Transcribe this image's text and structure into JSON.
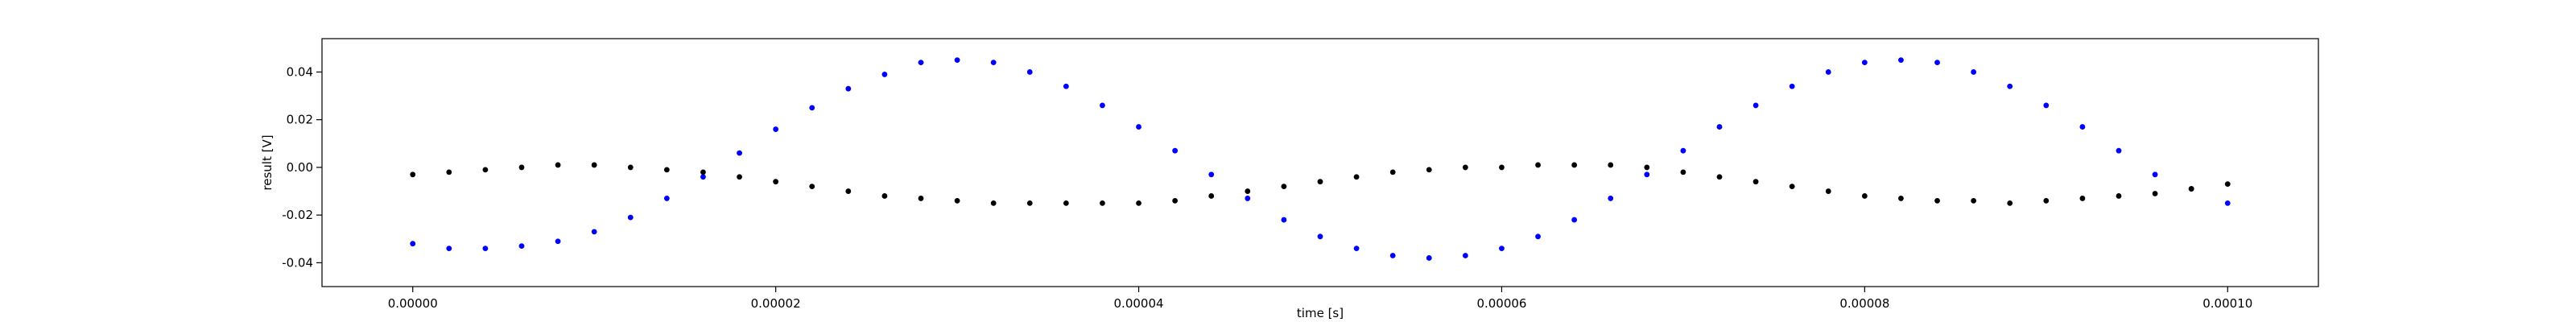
{
  "chart_data": {
    "type": "scatter",
    "title": "",
    "xlabel": "time [s]",
    "ylabel": "result [V]",
    "xlim": [
      -5e-06,
      0.000105
    ],
    "ylim": [
      -0.05,
      0.054
    ],
    "grid": false,
    "legend": "none",
    "xticks": [
      0,
      2e-05,
      4e-05,
      6e-05,
      8e-05,
      0.0001
    ],
    "xtick_labels": [
      "0.00000",
      "0.00002",
      "0.00004",
      "0.00006",
      "0.00008",
      "0.00010"
    ],
    "yticks": [
      -0.04,
      -0.02,
      0.0,
      0.02,
      0.04
    ],
    "ytick_labels": [
      "-0.04",
      "-0.02",
      "0.00",
      "0.02",
      "0.04"
    ],
    "series": [
      {
        "color": "#0000ff",
        "marker": "dot",
        "x": [
          0,
          2e-06,
          4e-06,
          6e-06,
          8e-06,
          1e-05,
          1.2e-05,
          1.4e-05,
          1.6e-05,
          1.8e-05,
          2e-05,
          2.2e-05,
          2.4e-05,
          2.6e-05,
          2.8e-05,
          3e-05,
          3.2e-05,
          3.4e-05,
          3.6e-05,
          3.8e-05,
          4e-05,
          4.2e-05,
          4.4e-05,
          4.6e-05,
          4.8e-05,
          5e-05,
          5.2e-05,
          5.4e-05,
          5.6e-05,
          5.8e-05,
          6e-05,
          6.2e-05,
          6.4e-05,
          6.6e-05,
          6.8e-05,
          7e-05,
          7.2e-05,
          7.4e-05,
          7.6e-05,
          7.8e-05,
          8e-05,
          8.2e-05,
          8.4e-05,
          8.6e-05,
          8.8e-05,
          9e-05,
          9.2e-05,
          9.4e-05,
          9.6e-05,
          9.8e-05,
          0.0001
        ],
        "y": [
          -0.032,
          -0.034,
          -0.034,
          -0.033,
          -0.031,
          -0.027,
          -0.021,
          -0.013,
          -0.004,
          0.006,
          0.016,
          0.025,
          0.033,
          0.039,
          0.044,
          0.045,
          0.044,
          0.04,
          0.034,
          0.026,
          0.017,
          0.007,
          -0.003,
          -0.013,
          -0.022,
          -0.029,
          -0.034,
          -0.037,
          -0.038,
          -0.037,
          -0.034,
          -0.029,
          -0.022,
          -0.013,
          -0.003,
          0.007,
          0.017,
          0.026,
          0.034,
          0.04,
          0.044,
          0.045,
          0.044,
          0.04,
          0.034,
          0.026,
          0.017,
          0.007,
          -0.003,
          -0.009,
          -0.015
        ]
      },
      {
        "color": "#000000",
        "marker": "dot",
        "x": [
          0,
          2e-06,
          4e-06,
          6e-06,
          8e-06,
          1e-05,
          1.2e-05,
          1.4e-05,
          1.6e-05,
          1.8e-05,
          2e-05,
          2.2e-05,
          2.4e-05,
          2.6e-05,
          2.8e-05,
          3e-05,
          3.2e-05,
          3.4e-05,
          3.6e-05,
          3.8e-05,
          4e-05,
          4.2e-05,
          4.4e-05,
          4.6e-05,
          4.8e-05,
          5e-05,
          5.2e-05,
          5.4e-05,
          5.6e-05,
          5.8e-05,
          6e-05,
          6.2e-05,
          6.4e-05,
          6.6e-05,
          6.8e-05,
          7e-05,
          7.2e-05,
          7.4e-05,
          7.6e-05,
          7.8e-05,
          8e-05,
          8.2e-05,
          8.4e-05,
          8.6e-05,
          8.8e-05,
          9e-05,
          9.2e-05,
          9.4e-05,
          9.6e-05,
          9.8e-05,
          0.0001
        ],
        "y": [
          -0.003,
          -0.002,
          -0.001,
          0,
          0.001,
          0.001,
          0,
          -0.001,
          -0.002,
          -0.004,
          -0.006,
          -0.008,
          -0.01,
          -0.012,
          -0.013,
          -0.014,
          -0.015,
          -0.015,
          -0.015,
          -0.015,
          -0.015,
          -0.014,
          -0.012,
          -0.01,
          -0.008,
          -0.006,
          -0.004,
          -0.002,
          -0.001,
          0,
          0,
          0.001,
          0.001,
          0.001,
          0,
          -0.002,
          -0.004,
          -0.006,
          -0.008,
          -0.01,
          -0.012,
          -0.013,
          -0.014,
          -0.014,
          -0.015,
          -0.014,
          -0.013,
          -0.012,
          -0.011,
          -0.009,
          -0.007
        ]
      }
    ]
  }
}
